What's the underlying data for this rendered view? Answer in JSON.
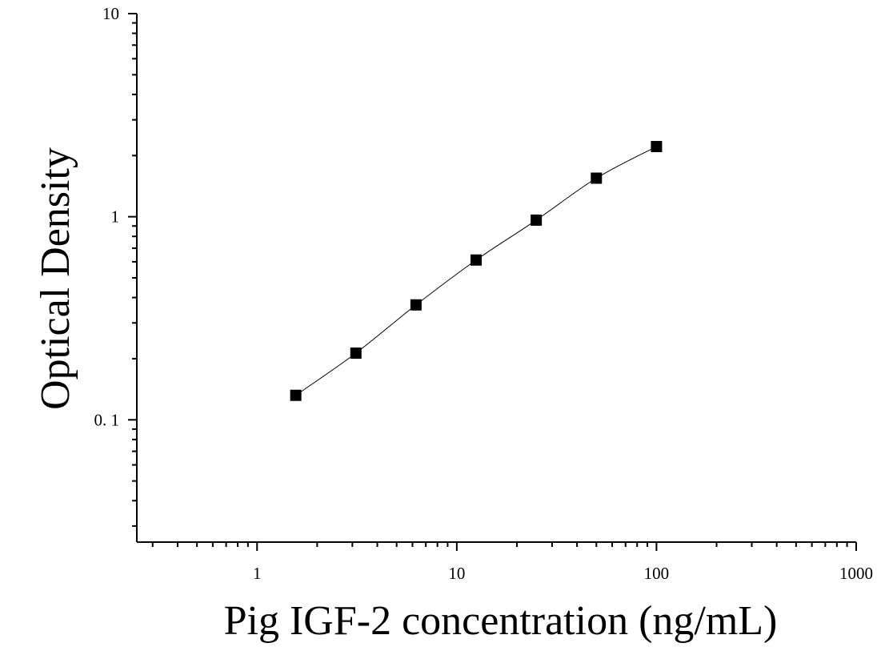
{
  "chart_data": {
    "type": "scatter",
    "xlabel": "Pig IGF-2 concentration (ng/mL)",
    "ylabel": "Optical Density",
    "x_scale": "log",
    "y_scale": "log",
    "xlim": [
      0.25,
      1000
    ],
    "ylim": [
      0.025,
      10
    ],
    "x_ticks": [
      1,
      10,
      100,
      1000
    ],
    "x_tick_labels": [
      "1",
      "10",
      "100",
      "1000"
    ],
    "y_ticks": [
      0.1,
      1,
      10
    ],
    "y_tick_labels": [
      "0. 1",
      "1",
      "10"
    ],
    "grid": false,
    "legend": "none",
    "series": [
      {
        "x": [
          1.5625,
          3.125,
          6.25,
          12.5,
          25,
          50,
          100
        ],
        "y": [
          0.132,
          0.213,
          0.368,
          0.612,
          0.962,
          1.548,
          2.215
        ],
        "marker": "square",
        "fit_line": true
      }
    ]
  }
}
